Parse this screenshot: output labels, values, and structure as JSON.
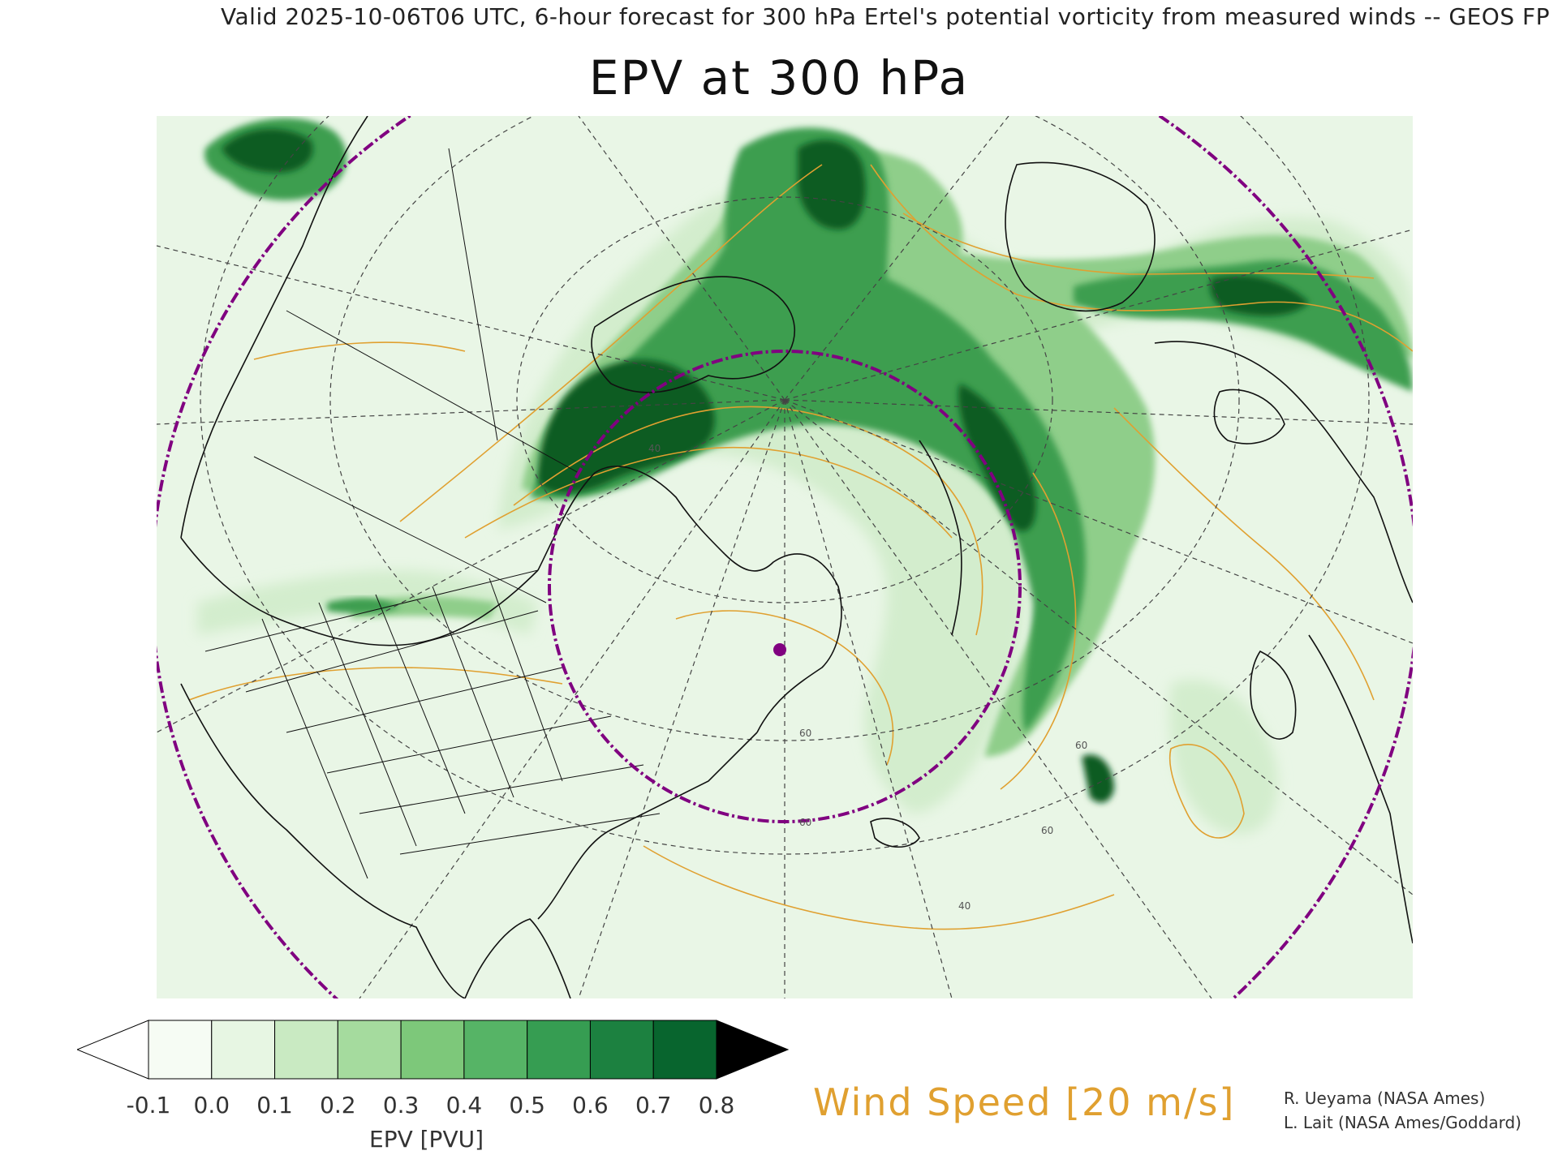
{
  "header": {
    "valid_line": "Valid 2025-10-06T06 UTC, 6-hour forecast for 300 hPa Ertel's potential vorticity from measured winds -- GEOS FP",
    "title": "EPV at 300 hPa"
  },
  "map": {
    "projection": "polar-stereographic",
    "region": "North America / North Atlantic / Arctic",
    "fill_variable": "EPV",
    "contour_variable": "Wind Speed",
    "contour_color": "#e0a030",
    "range_ring_color": "#800080",
    "marker": {
      "name": "location-marker",
      "color": "#800080"
    },
    "contour_labels": [
      "40",
      "60",
      "60",
      "60",
      "60",
      "40"
    ],
    "colors": {
      "background": "#e9f6e6",
      "light": "#d3edcd",
      "mid": "#8fce8a",
      "dark": "#3e9e50",
      "darkest": "#0d5c24"
    }
  },
  "colorbar": {
    "levels": [
      "-0.1",
      "0.0",
      "0.1",
      "0.2",
      "0.3",
      "0.4",
      "0.5",
      "0.6",
      "0.7",
      "0.8"
    ],
    "colors": [
      "#f6fcf4",
      "#e7f6e3",
      "#c9eac2",
      "#a5db9e",
      "#7dc87a",
      "#56b466",
      "#369d52",
      "#1c8140",
      "#08652e"
    ],
    "under_color": "#ffffff",
    "over_color": "#000000",
    "label": "EPV [PVU]"
  },
  "wind_label": "Wind Speed [20 m/s]",
  "credits": [
    "R. Ueyama (NASA Ames)",
    "L. Lait (NASA Ames/Goddard)"
  ]
}
